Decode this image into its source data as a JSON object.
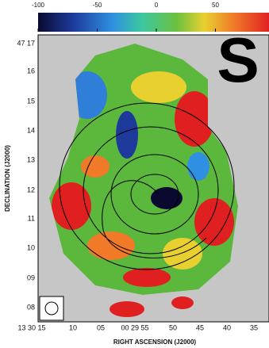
{
  "colorbar": {
    "ticks": [
      -100,
      -50,
      0,
      50
    ]
  },
  "panel_label": "S",
  "y_axis": {
    "title": "DECLINATION (J2000)",
    "ticks": [
      "47 17",
      "16",
      "15",
      "14",
      "13",
      "12",
      "11",
      "10",
      "09",
      "08"
    ]
  },
  "x_axis": {
    "title": "RIGHT ASCENSION (J2000)",
    "ticks": [
      "13 30 15",
      "10",
      "05",
      "00 29 55",
      "50",
      "45",
      "40",
      "35"
    ]
  }
}
